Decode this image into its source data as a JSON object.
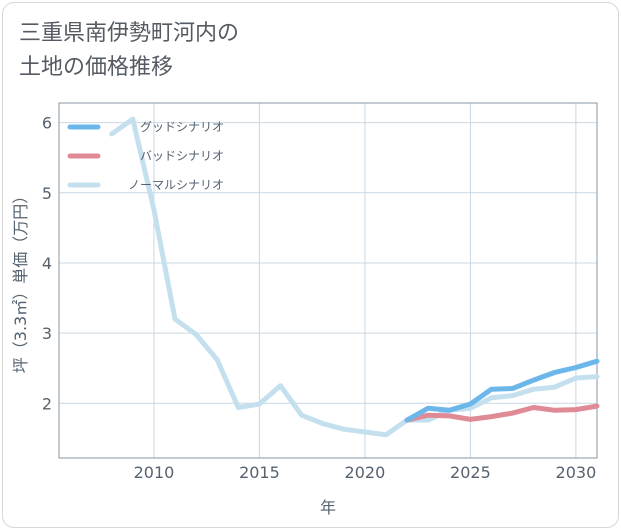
{
  "title_line1": "三重県南伊勢町河内の",
  "title_line2": "土地の価格推移",
  "chart_data": {
    "type": "line",
    "xlabel": "年",
    "ylabel": "坪（3.3㎡）単価（万円）",
    "xlim": [
      2005.5,
      2031
    ],
    "ylim": [
      1.22,
      6.28
    ],
    "xticks": [
      2010,
      2015,
      2020,
      2025,
      2030
    ],
    "yticks": [
      2,
      3,
      4,
      5,
      6
    ],
    "grid": true,
    "legend_position": "top-left",
    "series": [
      {
        "name": "グッドシナリオ",
        "color": "#6cb7ea",
        "x": [
          2022,
          2023,
          2024,
          2025,
          2026,
          2027,
          2028,
          2029,
          2030,
          2031
        ],
        "values": [
          1.76,
          1.93,
          1.9,
          1.99,
          2.2,
          2.21,
          2.33,
          2.44,
          2.51,
          2.6
        ]
      },
      {
        "name": "バッドシナリオ",
        "color": "#e08a96",
        "x": [
          2022,
          2023,
          2024,
          2025,
          2026,
          2027,
          2028,
          2029,
          2030,
          2031
        ],
        "values": [
          1.76,
          1.83,
          1.82,
          1.77,
          1.81,
          1.86,
          1.94,
          1.9,
          1.91,
          1.96
        ]
      },
      {
        "name": "ノーマルシナリオ",
        "color": "#c4e0ef",
        "x": [
          2008,
          2009,
          2010,
          2011,
          2012,
          2013,
          2014,
          2015,
          2016,
          2017,
          2018,
          2019,
          2020,
          2021,
          2022,
          2023,
          2024,
          2025,
          2026,
          2027,
          2028,
          2029,
          2030,
          2031
        ],
        "values": [
          5.84,
          6.05,
          4.76,
          3.2,
          2.98,
          2.62,
          1.94,
          1.99,
          2.25,
          1.83,
          1.71,
          1.63,
          1.59,
          1.55,
          1.76,
          1.76,
          1.9,
          1.93,
          2.08,
          2.11,
          2.2,
          2.23,
          2.36,
          2.38
        ]
      }
    ]
  }
}
